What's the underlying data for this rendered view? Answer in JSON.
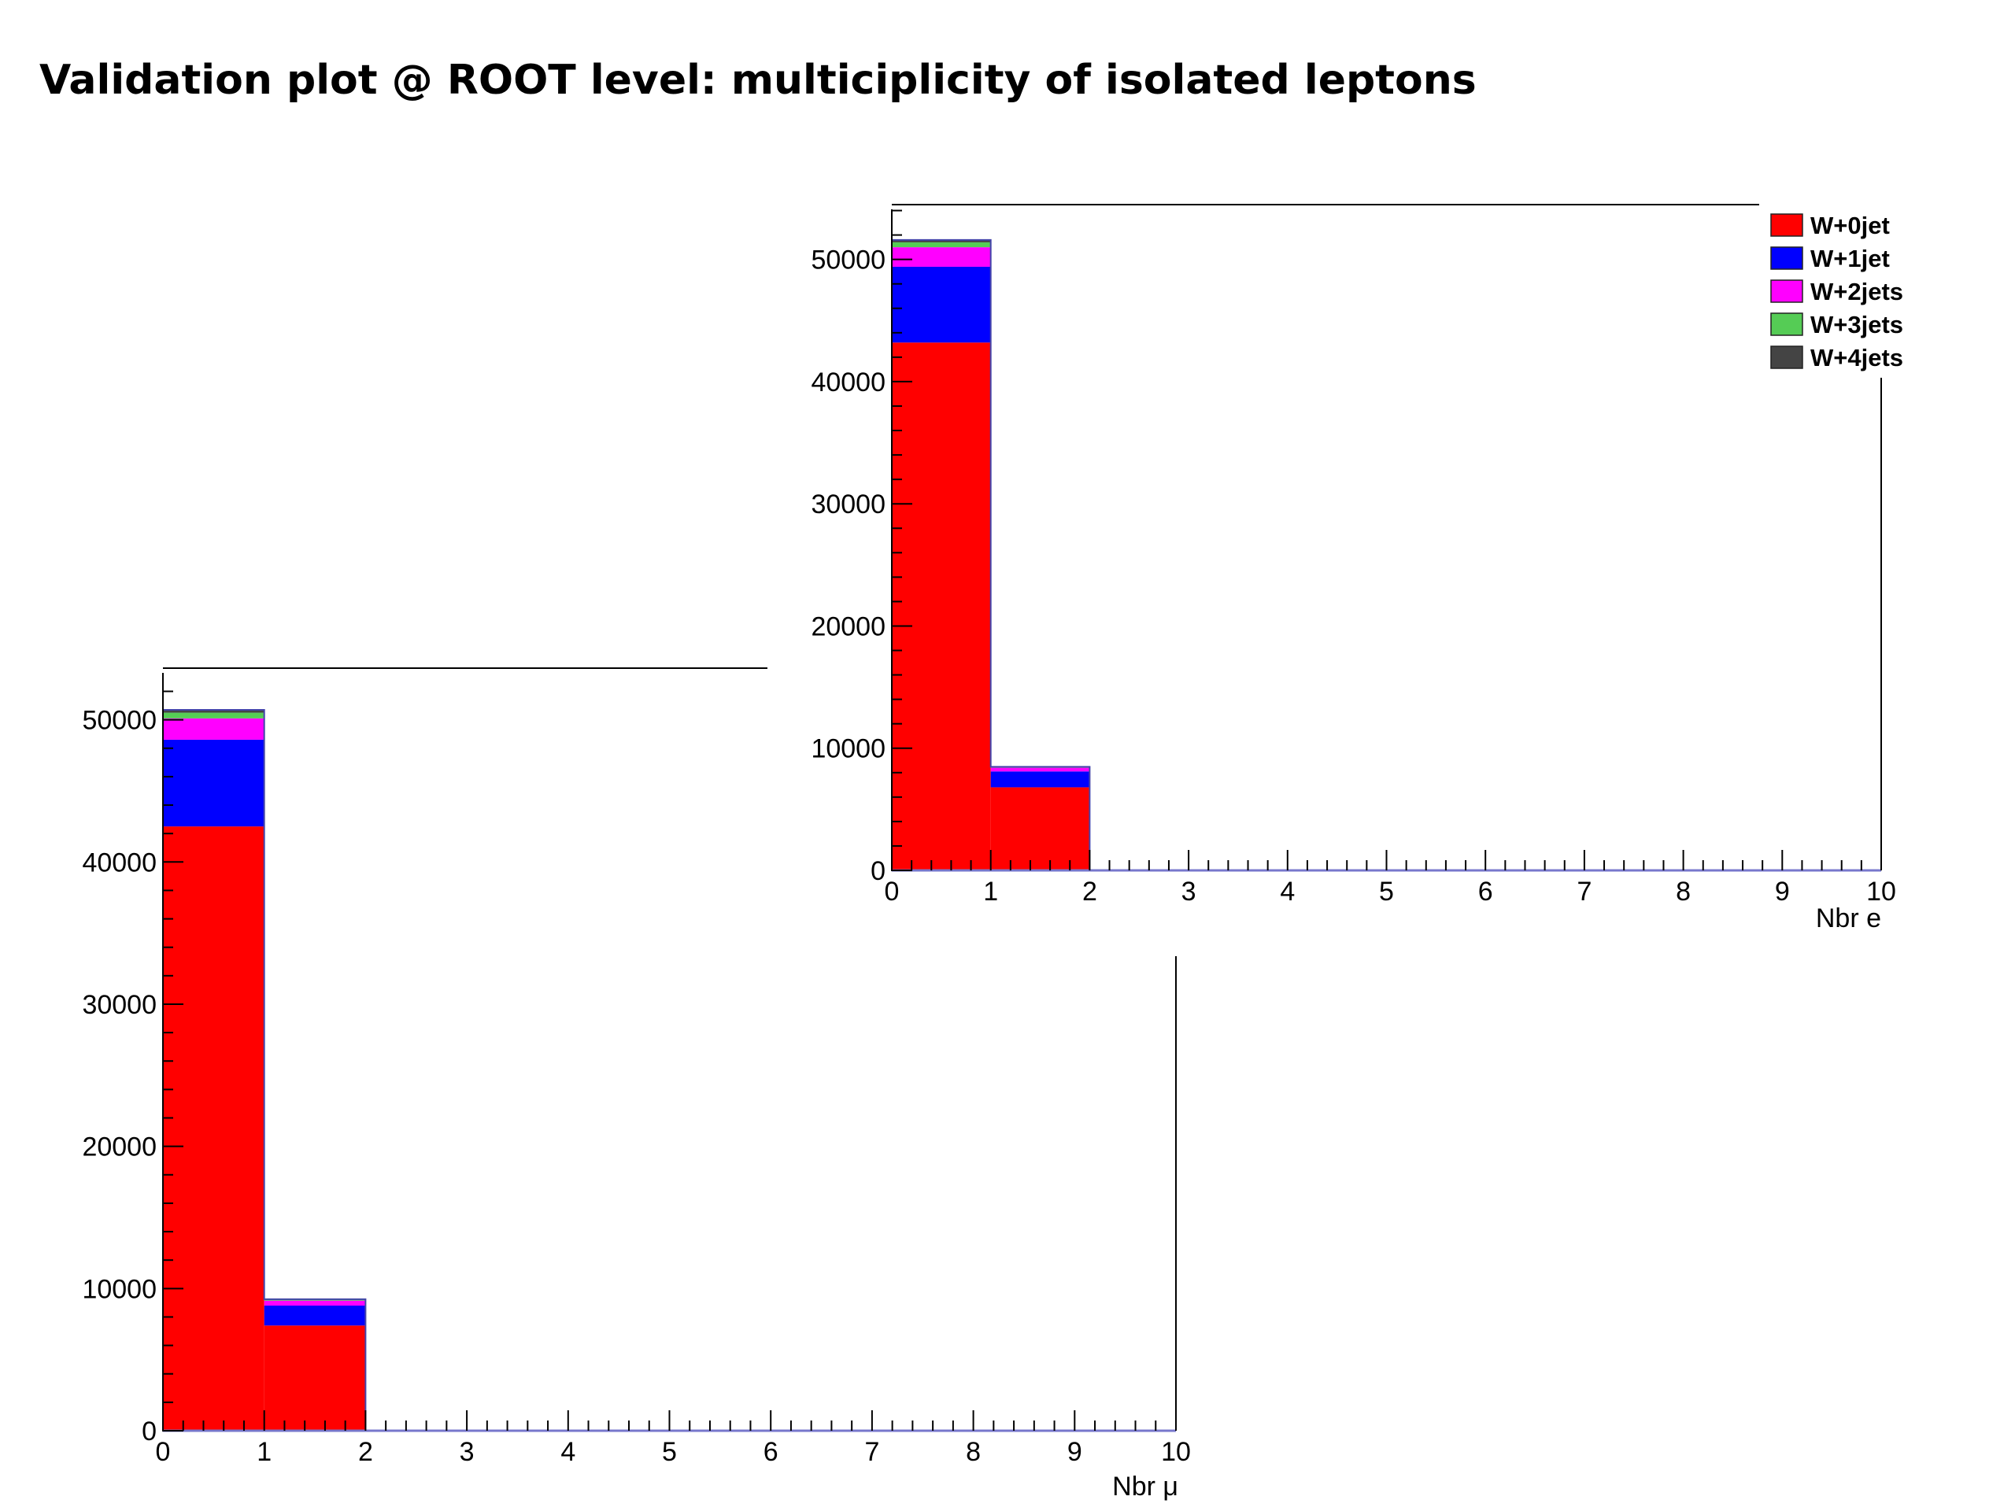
{
  "slide": {
    "title": "Validation plot @ ROOT level: multiciplicity of isolated leptons"
  },
  "chart_data": [
    {
      "type": "bar",
      "stacked": true,
      "id": "muon",
      "xlabel": "Nbr μ",
      "ylabel": "",
      "xlim": [
        0,
        10
      ],
      "ylim": [
        0,
        53300
      ],
      "bin_edges": [
        0,
        1,
        2,
        3,
        4,
        5,
        6,
        7,
        8,
        9,
        10
      ],
      "x_ticks": [
        0,
        1,
        2,
        3,
        4,
        5,
        6,
        7,
        8,
        9,
        10
      ],
      "y_ticks": [
        0,
        10000,
        20000,
        30000,
        40000,
        50000
      ],
      "x_tick_labels": [
        "0",
        "1",
        "2",
        "3",
        "4",
        "5",
        "6",
        "7",
        "8",
        "9",
        "10"
      ],
      "y_tick_labels": [
        "0",
        "10000",
        "20000",
        "30000",
        "40000",
        "50000"
      ],
      "legend": "none",
      "series": [
        {
          "name": "W+0jet",
          "color": "#ff0000",
          "values": [
            42500,
            7400,
            0,
            0,
            0,
            0,
            0,
            0,
            0,
            0
          ]
        },
        {
          "name": "W+1jet",
          "color": "#0000ff",
          "values": [
            6100,
            1400,
            0,
            0,
            0,
            0,
            0,
            0,
            0,
            0
          ]
        },
        {
          "name": "W+2jets",
          "color": "#ff00ff",
          "values": [
            1500,
            350,
            0,
            0,
            0,
            0,
            0,
            0,
            0,
            0
          ]
        },
        {
          "name": "W+3jets",
          "color": "#55cc55",
          "values": [
            400,
            80,
            0,
            0,
            0,
            0,
            0,
            0,
            0,
            0
          ]
        },
        {
          "name": "W+4jets",
          "color": "#444444",
          "values": [
            200,
            20,
            0,
            0,
            0,
            0,
            0,
            0,
            0,
            0
          ]
        }
      ]
    },
    {
      "type": "bar",
      "stacked": true,
      "id": "electron",
      "xlabel": "Nbr e",
      "ylabel": "",
      "xlim": [
        0,
        10
      ],
      "ylim": [
        0,
        54100
      ],
      "bin_edges": [
        0,
        1,
        2,
        3,
        4,
        5,
        6,
        7,
        8,
        9,
        10
      ],
      "x_ticks": [
        0,
        1,
        2,
        3,
        4,
        5,
        6,
        7,
        8,
        9,
        10
      ],
      "y_ticks": [
        0,
        10000,
        20000,
        30000,
        40000,
        50000
      ],
      "x_tick_labels": [
        "0",
        "1",
        "2",
        "3",
        "4",
        "5",
        "6",
        "7",
        "8",
        "9",
        "10"
      ],
      "y_tick_labels": [
        "0",
        "10000",
        "20000",
        "30000",
        "40000",
        "50000"
      ],
      "legend": "top-right",
      "series": [
        {
          "name": "W+0jet",
          "color": "#ff0000",
          "values": [
            43200,
            6800,
            0,
            0,
            0,
            0,
            0,
            0,
            0,
            0
          ]
        },
        {
          "name": "W+1jet",
          "color": "#0000ff",
          "values": [
            6200,
            1300,
            0,
            0,
            0,
            0,
            0,
            0,
            0,
            0
          ]
        },
        {
          "name": "W+2jets",
          "color": "#ff00ff",
          "values": [
            1600,
            300,
            0,
            0,
            0,
            0,
            0,
            0,
            0,
            0
          ]
        },
        {
          "name": "W+3jets",
          "color": "#55cc55",
          "values": [
            400,
            60,
            0,
            0,
            0,
            0,
            0,
            0,
            0,
            0
          ]
        },
        {
          "name": "W+4jets",
          "color": "#444444",
          "values": [
            200,
            20,
            0,
            0,
            0,
            0,
            0,
            0,
            0,
            0
          ]
        }
      ]
    }
  ]
}
